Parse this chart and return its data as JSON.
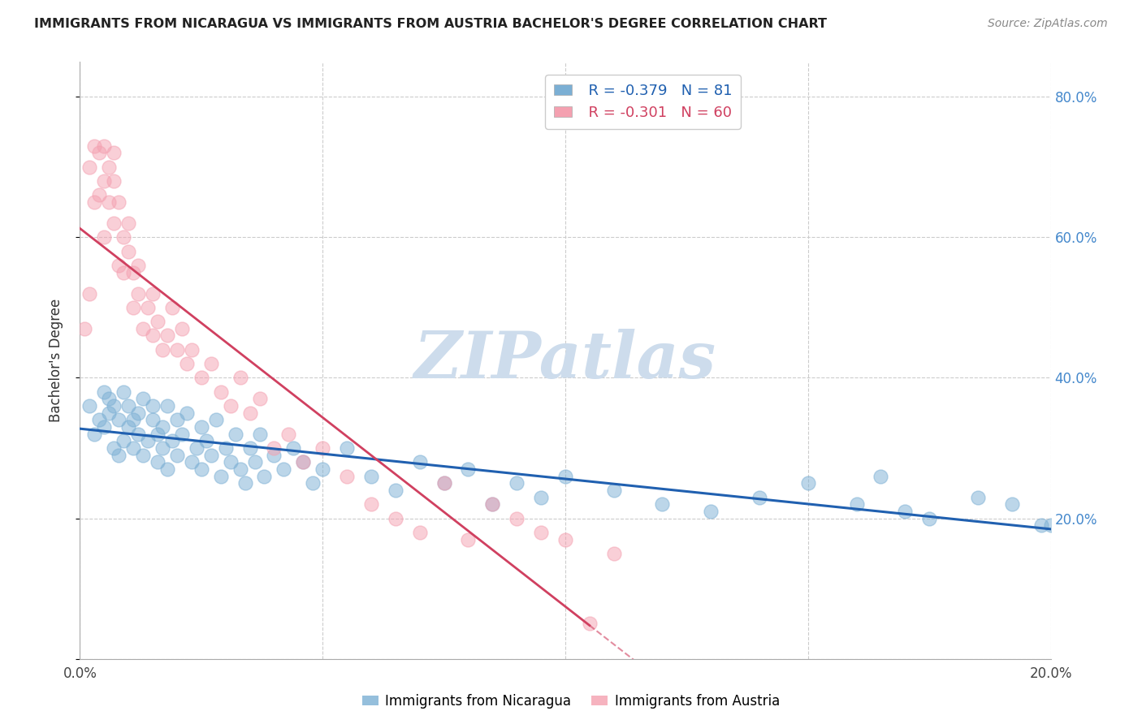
{
  "title": "IMMIGRANTS FROM NICARAGUA VS IMMIGRANTS FROM AUSTRIA BACHELOR'S DEGREE CORRELATION CHART",
  "source": "Source: ZipAtlas.com",
  "ylabel": "Bachelor's Degree",
  "xlim": [
    0.0,
    0.2
  ],
  "ylim": [
    0.0,
    0.85
  ],
  "xticks": [
    0.0,
    0.05,
    0.1,
    0.15,
    0.2
  ],
  "yticks": [
    0.0,
    0.2,
    0.4,
    0.6,
    0.8
  ],
  "xtick_labels": [
    "0.0%",
    "",
    "",
    "",
    "20.0%"
  ],
  "ytick_labels_right": [
    "",
    "20.0%",
    "40.0%",
    "60.0%",
    "80.0%"
  ],
  "nicaragua_color": "#7bafd4",
  "austria_color": "#f4a0b0",
  "nicaragua_line_color": "#2060b0",
  "austria_line_color": "#d04060",
  "nicaragua_R": -0.379,
  "nicaragua_N": 81,
  "austria_R": -0.301,
  "austria_N": 60,
  "watermark": "ZIPatlas",
  "watermark_color": "#cddcec",
  "nicaragua_scatter_x": [
    0.002,
    0.003,
    0.004,
    0.005,
    0.005,
    0.006,
    0.006,
    0.007,
    0.007,
    0.008,
    0.008,
    0.009,
    0.009,
    0.01,
    0.01,
    0.011,
    0.011,
    0.012,
    0.012,
    0.013,
    0.013,
    0.014,
    0.015,
    0.015,
    0.016,
    0.016,
    0.017,
    0.017,
    0.018,
    0.018,
    0.019,
    0.02,
    0.02,
    0.021,
    0.022,
    0.023,
    0.024,
    0.025,
    0.025,
    0.026,
    0.027,
    0.028,
    0.029,
    0.03,
    0.031,
    0.032,
    0.033,
    0.034,
    0.035,
    0.036,
    0.037,
    0.038,
    0.04,
    0.042,
    0.044,
    0.046,
    0.048,
    0.05,
    0.055,
    0.06,
    0.065,
    0.07,
    0.075,
    0.08,
    0.085,
    0.09,
    0.095,
    0.1,
    0.11,
    0.12,
    0.13,
    0.14,
    0.15,
    0.16,
    0.165,
    0.17,
    0.175,
    0.185,
    0.192,
    0.198,
    0.2
  ],
  "nicaragua_scatter_y": [
    0.36,
    0.32,
    0.34,
    0.38,
    0.33,
    0.35,
    0.37,
    0.3,
    0.36,
    0.34,
    0.29,
    0.31,
    0.38,
    0.33,
    0.36,
    0.34,
    0.3,
    0.32,
    0.35,
    0.29,
    0.37,
    0.31,
    0.34,
    0.36,
    0.32,
    0.28,
    0.33,
    0.3,
    0.36,
    0.27,
    0.31,
    0.34,
    0.29,
    0.32,
    0.35,
    0.28,
    0.3,
    0.33,
    0.27,
    0.31,
    0.29,
    0.34,
    0.26,
    0.3,
    0.28,
    0.32,
    0.27,
    0.25,
    0.3,
    0.28,
    0.32,
    0.26,
    0.29,
    0.27,
    0.3,
    0.28,
    0.25,
    0.27,
    0.3,
    0.26,
    0.24,
    0.28,
    0.25,
    0.27,
    0.22,
    0.25,
    0.23,
    0.26,
    0.24,
    0.22,
    0.21,
    0.23,
    0.25,
    0.22,
    0.26,
    0.21,
    0.2,
    0.23,
    0.22,
    0.19,
    0.19
  ],
  "austria_scatter_x": [
    0.001,
    0.002,
    0.002,
    0.003,
    0.003,
    0.004,
    0.004,
    0.005,
    0.005,
    0.005,
    0.006,
    0.006,
    0.007,
    0.007,
    0.007,
    0.008,
    0.008,
    0.009,
    0.009,
    0.01,
    0.01,
    0.011,
    0.011,
    0.012,
    0.012,
    0.013,
    0.014,
    0.015,
    0.015,
    0.016,
    0.017,
    0.018,
    0.019,
    0.02,
    0.021,
    0.022,
    0.023,
    0.025,
    0.027,
    0.029,
    0.031,
    0.033,
    0.035,
    0.037,
    0.04,
    0.043,
    0.046,
    0.05,
    0.055,
    0.06,
    0.065,
    0.07,
    0.075,
    0.08,
    0.085,
    0.09,
    0.095,
    0.1,
    0.105,
    0.11
  ],
  "austria_scatter_y": [
    0.47,
    0.52,
    0.7,
    0.65,
    0.73,
    0.66,
    0.72,
    0.68,
    0.73,
    0.6,
    0.65,
    0.7,
    0.68,
    0.72,
    0.62,
    0.65,
    0.56,
    0.6,
    0.55,
    0.58,
    0.62,
    0.5,
    0.55,
    0.52,
    0.56,
    0.47,
    0.5,
    0.46,
    0.52,
    0.48,
    0.44,
    0.46,
    0.5,
    0.44,
    0.47,
    0.42,
    0.44,
    0.4,
    0.42,
    0.38,
    0.36,
    0.4,
    0.35,
    0.37,
    0.3,
    0.32,
    0.28,
    0.3,
    0.26,
    0.22,
    0.2,
    0.18,
    0.25,
    0.17,
    0.22,
    0.2,
    0.18,
    0.17,
    0.05,
    0.15
  ]
}
